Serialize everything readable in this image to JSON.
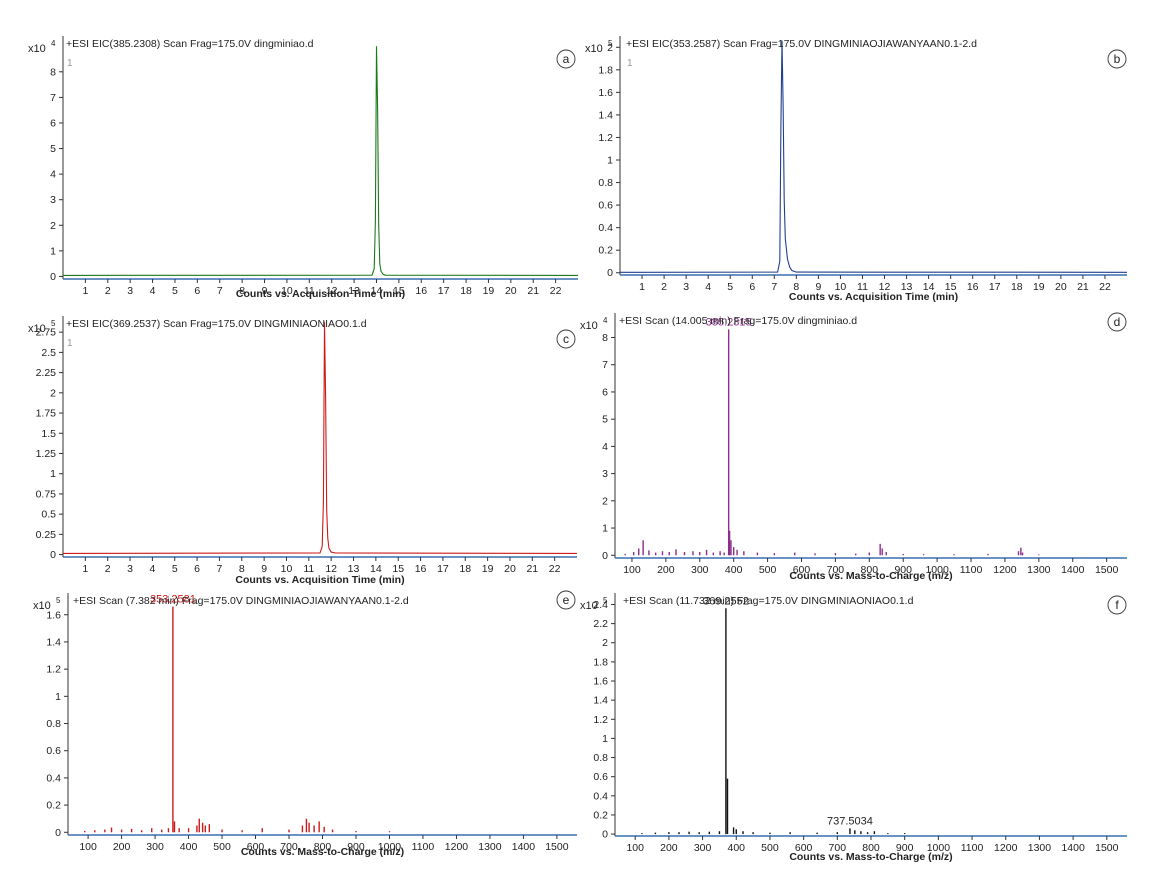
{
  "chart_data": [
    {
      "id": "a",
      "type": "line",
      "panel_letter": "a",
      "title": "+ESI EIC(385.2308) Scan Frag=175.0V dingminiao.d",
      "trace_label": "1",
      "xlabel": "Counts vs. Acquisition Time (min)",
      "ylabel": "",
      "y_multiplier": "x10",
      "y_exponent": "4",
      "color": "#1a7a1a",
      "xlim": [
        0,
        23
      ],
      "ylim": [
        -0.1,
        9.4
      ],
      "xticks": [
        "1",
        "2",
        "3",
        "4",
        "5",
        "6",
        "7",
        "8",
        "9",
        "10",
        "11",
        "12",
        "13",
        "14",
        "15",
        "16",
        "17",
        "18",
        "19",
        "20",
        "21",
        "22"
      ],
      "yticks": [
        "0",
        "1",
        "2",
        "3",
        "4",
        "5",
        "6",
        "7",
        "8"
      ],
      "series": [
        {
          "x": [
            0,
            13.8,
            13.9,
            13.95,
            14.0,
            14.05,
            14.1,
            14.15,
            14.2,
            14.3,
            14.4,
            23
          ],
          "y": [
            0.04,
            0.05,
            0.3,
            2.2,
            9.0,
            6.6,
            2.0,
            0.5,
            0.2,
            0.08,
            0.05,
            0.04
          ]
        }
      ]
    },
    {
      "id": "b",
      "type": "line",
      "panel_letter": "b",
      "title": "+ESI EIC(353.2587) Scan Frag=175.0V DINGMINIAOJIAWANYAAN0.1-2.d",
      "trace_label": "1",
      "xlabel": "Counts vs. Acquisition Time (min)",
      "ylabel": "",
      "y_multiplier": "x10",
      "y_exponent": "5",
      "color": "#1f3f8f",
      "xlim": [
        0,
        23
      ],
      "ylim": [
        -0.02,
        2.1
      ],
      "xticks": [
        "1",
        "2",
        "3",
        "4",
        "5",
        "6",
        "7",
        "8",
        "9",
        "10",
        "11",
        "12",
        "13",
        "14",
        "15",
        "16",
        "17",
        "18",
        "19",
        "20",
        "21",
        "22"
      ],
      "yticks": [
        "0",
        "0.2",
        "0.4",
        "0.6",
        "0.8",
        "1",
        "1.2",
        "1.4",
        "1.6",
        "1.8",
        "2"
      ],
      "series": [
        {
          "x": [
            0,
            7.15,
            7.25,
            7.3,
            7.35,
            7.4,
            7.45,
            7.5,
            7.6,
            7.7,
            7.8,
            8.0,
            23
          ],
          "y": [
            0.004,
            0.006,
            0.1,
            1.3,
            2.06,
            1.5,
            0.65,
            0.3,
            0.12,
            0.05,
            0.02,
            0.006,
            0.004
          ]
        }
      ]
    },
    {
      "id": "c",
      "type": "line",
      "panel_letter": "c",
      "title": "+ESI EIC(369.2537) Scan Frag=175.0V DINGMINIAONIAO0.1.d",
      "trace_label": "1",
      "xlabel": "Counts vs. Acquisition Time (min)",
      "ylabel": "",
      "y_multiplier": "x10",
      "y_exponent": "5",
      "color": "#cc1a1a",
      "xlim": [
        0,
        23
      ],
      "ylim": [
        -0.03,
        2.95
      ],
      "xticks": [
        "1",
        "2",
        "3",
        "4",
        "5",
        "6",
        "7",
        "8",
        "9",
        "10",
        "11",
        "12",
        "13",
        "14",
        "15",
        "16",
        "17",
        "18",
        "19",
        "20",
        "21",
        "22"
      ],
      "yticks": [
        "0",
        "0.25",
        "0.5",
        "0.75",
        "1",
        "1.25",
        "1.5",
        "1.75",
        "2",
        "2.25",
        "2.5",
        "2.75"
      ],
      "series": [
        {
          "x": [
            0,
            11.5,
            11.6,
            11.65,
            11.7,
            11.75,
            11.8,
            11.85,
            11.9,
            12.0,
            12.2,
            23
          ],
          "y": [
            0.015,
            0.02,
            0.1,
            0.65,
            2.88,
            1.95,
            0.55,
            0.2,
            0.08,
            0.03,
            0.02,
            0.015
          ]
        }
      ]
    },
    {
      "id": "d",
      "type": "bar",
      "panel_letter": "d",
      "title": "+ESI Scan (14.005 min) Frag=175.0V dingminiao.d",
      "xlabel": "Counts vs. Mass-to-Charge (m/z)",
      "ylabel": "",
      "y_multiplier": "x10",
      "y_exponent": "4",
      "color": "#8a2f8a",
      "xlim": [
        50,
        1560
      ],
      "ylim": [
        -0.1,
        8.9
      ],
      "xticks": [
        "100",
        "200",
        "300",
        "400",
        "500",
        "600",
        "700",
        "800",
        "900",
        "1000",
        "1100",
        "1200",
        "1300",
        "1400",
        "1500"
      ],
      "yticks": [
        "0",
        "1",
        "2",
        "3",
        "4",
        "5",
        "6",
        "7",
        "8"
      ],
      "annotations": [
        {
          "mz": 385.2315,
          "label": "385.2315"
        }
      ],
      "peaks": {
        "mz": [
          80,
          105,
          120,
          133,
          150,
          170,
          190,
          210,
          230,
          255,
          280,
          300,
          320,
          340,
          360,
          372,
          385.2315,
          388,
          392,
          400,
          410,
          430,
          470,
          520,
          580,
          640,
          700,
          760,
          800,
          832,
          838,
          850,
          900,
          960,
          1050,
          1150,
          1240,
          1247,
          1252,
          1300
        ],
        "intensity": [
          0.05,
          0.12,
          0.25,
          0.55,
          0.18,
          0.1,
          0.15,
          0.12,
          0.22,
          0.12,
          0.15,
          0.12,
          0.2,
          0.1,
          0.15,
          0.1,
          8.3,
          0.9,
          0.55,
          0.3,
          0.2,
          0.15,
          0.1,
          0.08,
          0.1,
          0.07,
          0.08,
          0.06,
          0.1,
          0.42,
          0.25,
          0.12,
          0.05,
          0.04,
          0.04,
          0.05,
          0.15,
          0.28,
          0.1,
          0.03
        ]
      }
    },
    {
      "id": "e",
      "type": "bar",
      "panel_letter": "e",
      "title": "+ESI Scan (7.382 min) Frag=175.0V DINGMINIAOJIAWANYAAN0.1-2.d",
      "xlabel": "Counts vs. Mass-to-Charge (m/z)",
      "ylabel": "",
      "y_multiplier": "x10",
      "y_exponent": "5",
      "color": "#cc1a1a",
      "xlim": [
        40,
        1560
      ],
      "ylim": [
        -0.02,
        1.76
      ],
      "xticks": [
        "100",
        "200",
        "300",
        "400",
        "500",
        "600",
        "700",
        "800",
        "900",
        "1000",
        "1100",
        "1200",
        "1300",
        "1400",
        "1500"
      ],
      "yticks": [
        "0",
        "0.2",
        "0.4",
        "0.6",
        "0.8",
        "1",
        "1.2",
        "1.4",
        "1.6"
      ],
      "annotations": [
        {
          "mz": 353.2581,
          "label": "353.2581"
        }
      ],
      "peaks": {
        "mz": [
          90,
          120,
          150,
          170,
          200,
          230,
          260,
          290,
          320,
          340,
          353.2581,
          358,
          372,
          400,
          425,
          432,
          442,
          450,
          462,
          500,
          560,
          620,
          700,
          740,
          752,
          760,
          775,
          790,
          805,
          830,
          900,
          1000
        ],
        "intensity": [
          0.01,
          0.015,
          0.02,
          0.035,
          0.02,
          0.025,
          0.015,
          0.03,
          0.02,
          0.03,
          1.66,
          0.08,
          0.03,
          0.03,
          0.05,
          0.1,
          0.07,
          0.05,
          0.06,
          0.02,
          0.015,
          0.03,
          0.02,
          0.05,
          0.1,
          0.07,
          0.05,
          0.08,
          0.04,
          0.02,
          0.01,
          0.008
        ]
      }
    },
    {
      "id": "f",
      "type": "bar",
      "panel_letter": "f",
      "title": "+ESI Scan (11.732 min) Frag=175.0V DINGMINIAONIAO0.1.d",
      "xlabel": "Counts vs. Mass-to-Charge (m/z)",
      "ylabel": "",
      "y_multiplier": "x10",
      "y_exponent": "5",
      "color": "#111111",
      "xlim": [
        40,
        1560
      ],
      "ylim": [
        -0.02,
        2.52
      ],
      "xticks": [
        "100",
        "200",
        "300",
        "400",
        "500",
        "600",
        "700",
        "800",
        "900",
        "1000",
        "1100",
        "1200",
        "1300",
        "1400",
        "1500"
      ],
      "yticks": [
        "0",
        "0.2",
        "0.4",
        "0.6",
        "0.8",
        "1",
        "1.2",
        "1.4",
        "1.6",
        "1.8",
        "2",
        "2.2",
        "2.4"
      ],
      "annotations": [
        {
          "mz": 369.2552,
          "label": "369.2552"
        },
        {
          "mz": 737.5034,
          "label": "737.5034"
        }
      ],
      "peaks": {
        "mz": [
          120,
          160,
          200,
          230,
          260,
          290,
          320,
          350,
          369.2552,
          374,
          392,
          400,
          420,
          450,
          500,
          560,
          640,
          700,
          737.5034,
          752,
          770,
          790,
          810,
          850,
          900
        ],
        "intensity": [
          0.01,
          0.015,
          0.02,
          0.02,
          0.025,
          0.02,
          0.025,
          0.03,
          2.36,
          0.58,
          0.07,
          0.05,
          0.03,
          0.02,
          0.015,
          0.02,
          0.015,
          0.02,
          0.06,
          0.04,
          0.03,
          0.02,
          0.03,
          0.01,
          0.01
        ]
      }
    }
  ]
}
